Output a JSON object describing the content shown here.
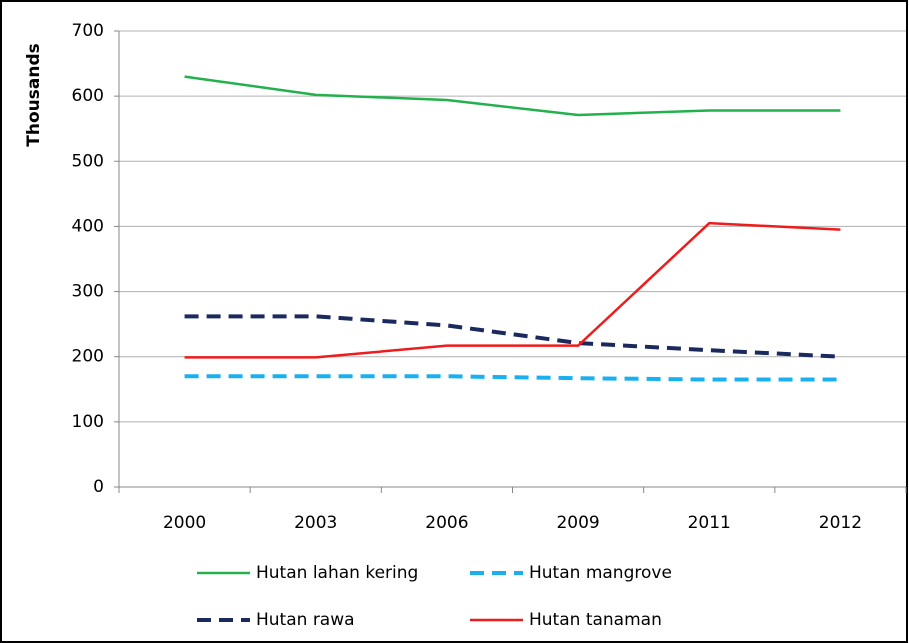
{
  "chart_data": {
    "type": "line",
    "y_label": "Thousands",
    "categories": [
      "2000",
      "2003",
      "2006",
      "2009",
      "2011",
      "2012"
    ],
    "series": [
      {
        "name": "Hutan lahan kering",
        "color": "#22b14c",
        "style": "solid",
        "values": [
          630,
          602,
          594,
          571,
          578,
          578
        ]
      },
      {
        "name": "Hutan mangrove",
        "color": "#1ab0ef",
        "style": "dashed",
        "values": [
          170,
          170,
          170,
          167,
          165,
          165
        ]
      },
      {
        "name": "Hutan rawa",
        "color": "#1a2a5e",
        "style": "dashed",
        "values": [
          262,
          262,
          248,
          221,
          210,
          200
        ]
      },
      {
        "name": "Hutan tanaman",
        "color": "#ee1c1c",
        "style": "solid",
        "values": [
          199,
          199,
          217,
          217,
          405,
          395
        ]
      }
    ],
    "ylim": [
      0,
      700
    ],
    "yticks": [
      0,
      100,
      200,
      300,
      400,
      500,
      600,
      700
    ],
    "grid": true,
    "legend": "bottom"
  }
}
